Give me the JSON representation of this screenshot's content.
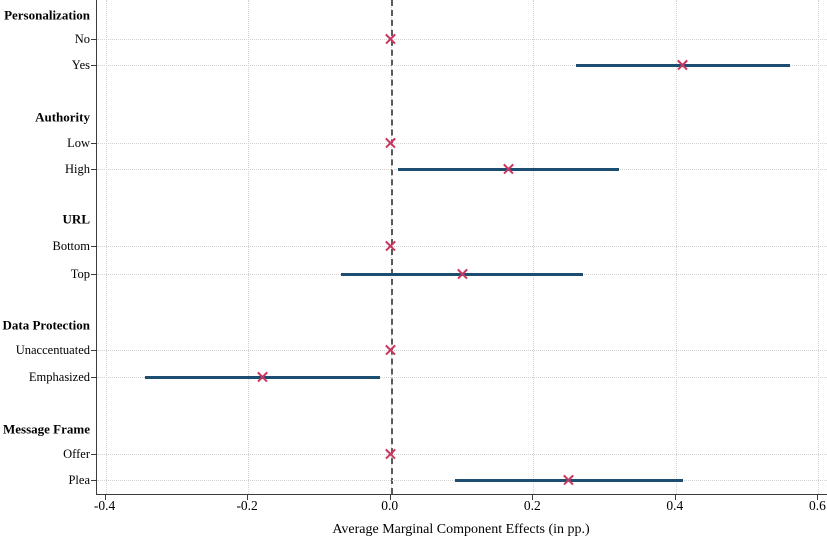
{
  "chart_data": {
    "type": "scatter",
    "variant": "coefficient-plot-with-confidence-intervals",
    "title": "",
    "xlabel": "Average Marginal Component Effects (in pp.)",
    "ylabel": "",
    "xlim": [
      -0.412,
      0.612
    ],
    "xticks": [
      -0.4,
      -0.2,
      0.0,
      0.2,
      0.4,
      0.6
    ],
    "xtick_labels": [
      "-0.4",
      "-0.2",
      "0.0",
      "0.2",
      "0.4",
      "0.6"
    ],
    "zero_line": 0,
    "grid": true,
    "marker_symbol": "x",
    "groups": [
      {
        "label": "Personalization",
        "levels": [
          {
            "label": "No",
            "estimate": 0,
            "ci_low": 0,
            "ci_high": 0,
            "reference": true
          },
          {
            "label": "Yes",
            "estimate": 0.41,
            "ci_low": 0.26,
            "ci_high": 0.56,
            "reference": false
          }
        ]
      },
      {
        "label": "Authority",
        "levels": [
          {
            "label": "Low",
            "estimate": 0,
            "ci_low": 0,
            "ci_high": 0,
            "reference": true
          },
          {
            "label": "High",
            "estimate": 0.165,
            "ci_low": 0.01,
            "ci_high": 0.32,
            "reference": false
          }
        ]
      },
      {
        "label": "URL",
        "levels": [
          {
            "label": "Bottom",
            "estimate": 0,
            "ci_low": 0,
            "ci_high": 0,
            "reference": true
          },
          {
            "label": "Top",
            "estimate": 0.1,
            "ci_low": -0.07,
            "ci_high": 0.27,
            "reference": false
          }
        ]
      },
      {
        "label": "Data Protection",
        "levels": [
          {
            "label": "Unaccentuated",
            "estimate": 0,
            "ci_low": 0,
            "ci_high": 0,
            "reference": true
          },
          {
            "label": "Emphasized",
            "estimate": -0.18,
            "ci_low": -0.345,
            "ci_high": -0.015,
            "reference": false
          }
        ]
      },
      {
        "label": "Message Frame",
        "levels": [
          {
            "label": "Offer",
            "estimate": 0,
            "ci_low": 0,
            "ci_high": 0,
            "reference": true
          },
          {
            "label": "Plea",
            "estimate": 0.25,
            "ci_low": 0.09,
            "ci_high": 0.41,
            "reference": false
          }
        ]
      }
    ],
    "colors": {
      "ci_line": "#1d4d70",
      "marker": "#c9375e",
      "zero_line": "#5a5a5a",
      "grid": "#d2d2d2",
      "axis": "#3c3c3c",
      "text": "#000000"
    }
  }
}
